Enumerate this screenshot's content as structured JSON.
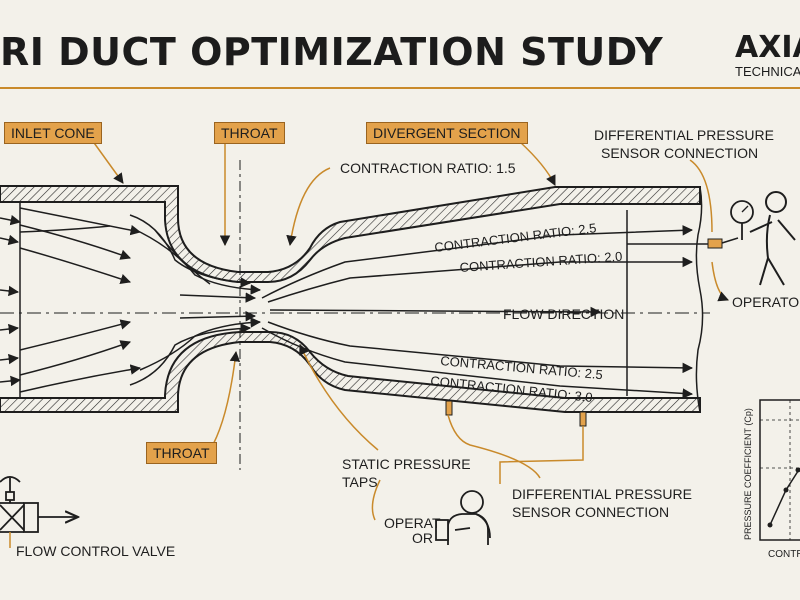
{
  "header": {
    "title": "RI DUCT OPTIMIZATION STUDY",
    "logo": "AXIA",
    "logo_sub": "TECHNICA"
  },
  "tags": {
    "inlet_cone": "INLET CONE",
    "throat_top": "THROAT",
    "divergent": "DIVERGENT SECTION",
    "throat_bottom": "THROAT"
  },
  "labels": {
    "dp_top_line1": "DIFFERENTIAL PRESSURE",
    "dp_top_line2": "SENSOR CONNECTION",
    "contraction_15": "CONTRACTION RATIO: 1.5",
    "contraction_25_top": "CONTRACTION RATIO: 2.5",
    "contraction_20": "CONTRACTION RATIO: 2.0",
    "flow_direction": "FLOW DIRECTION",
    "contraction_25_bottom": "CONTRACTION RATIO: 2.5",
    "contraction_30": "CONTRACTION RATIO: 3.0",
    "operator_right": "OPERATOR",
    "static_taps_line1": "STATIC PRESSURE",
    "static_taps_line2": "TAPS",
    "dp_bottom_line1": "DIFFERENTIAL PRESSURE",
    "dp_bottom_line2": "SENSOR CONNECTION",
    "operator_bottom_line1": "OPERAT",
    "operator_bottom_line2": "OR",
    "flow_valve": "FLOW CONTROL VALVE",
    "chart_ylabel": "PRESSURE COEFFICIENT (Cp)",
    "chart_xlabel": "CONTR"
  },
  "colors": {
    "accent": "#e3a24b",
    "leader": "#c98a2b",
    "ink": "#1e1e1e",
    "background": "#f3f1ea"
  }
}
